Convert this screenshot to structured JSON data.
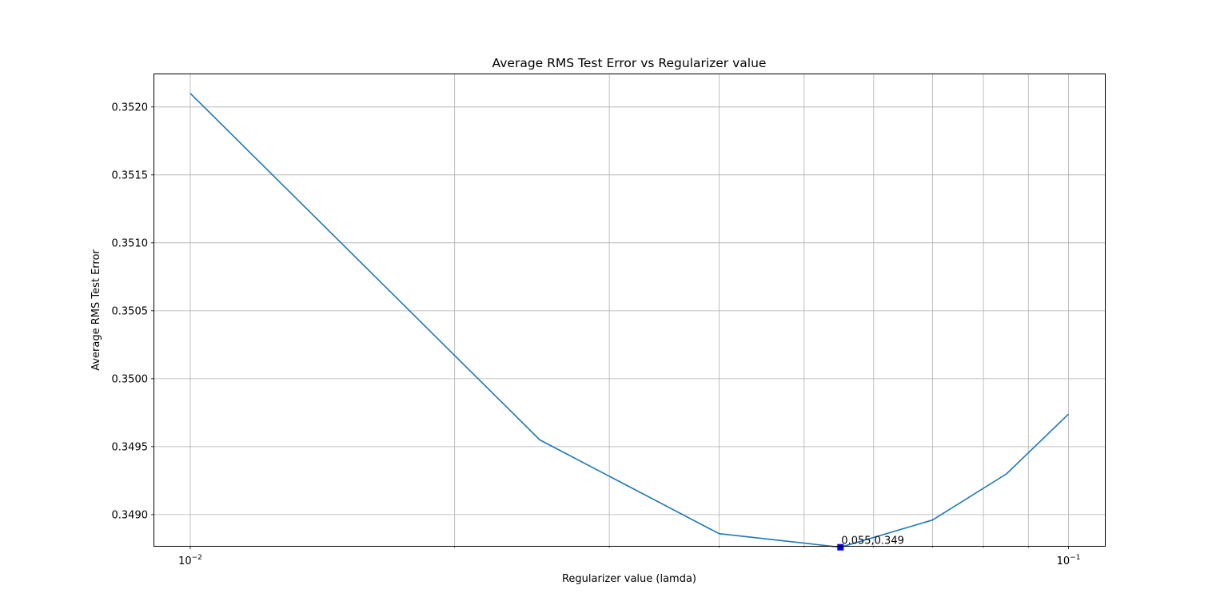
{
  "chart_data": {
    "type": "line",
    "title": "Average RMS Test Error vs Regularizer value",
    "xlabel": "Regularizer value (lamda)",
    "ylabel": "Average RMS Test Error",
    "xscale": "log",
    "xlim": [
      0.0091,
      0.11
    ],
    "ylim": [
      0.34877,
      0.35224
    ],
    "grid": true,
    "x_major_ticks": [
      0.01,
      0.1
    ],
    "x_minor_ticks": [
      0.02,
      0.03,
      0.04,
      0.05,
      0.06,
      0.07,
      0.08,
      0.09
    ],
    "x_major_tick_labels": [
      {
        "base": "10",
        "exp": "−2"
      },
      {
        "base": "10",
        "exp": "−1"
      }
    ],
    "y_ticks": [
      0.349,
      0.3495,
      0.35,
      0.3505,
      0.351,
      0.3515,
      0.352
    ],
    "y_tick_labels": [
      "0.3490",
      "0.3495",
      "0.3500",
      "0.3505",
      "0.3510",
      "0.3515",
      "0.3520"
    ],
    "series": [
      {
        "color": "#1f77b4",
        "x": [
          0.01,
          0.025,
          0.04,
          0.055,
          0.07,
          0.085,
          0.1
        ],
        "y": [
          0.3521,
          0.34955,
          0.34886,
          0.34876,
          0.34896,
          0.3493,
          0.34974
        ]
      }
    ],
    "highlight": {
      "x": 0.055,
      "y": 0.34876,
      "marker": "square",
      "color": "#0000ff",
      "label": "0.055,0.349"
    }
  }
}
